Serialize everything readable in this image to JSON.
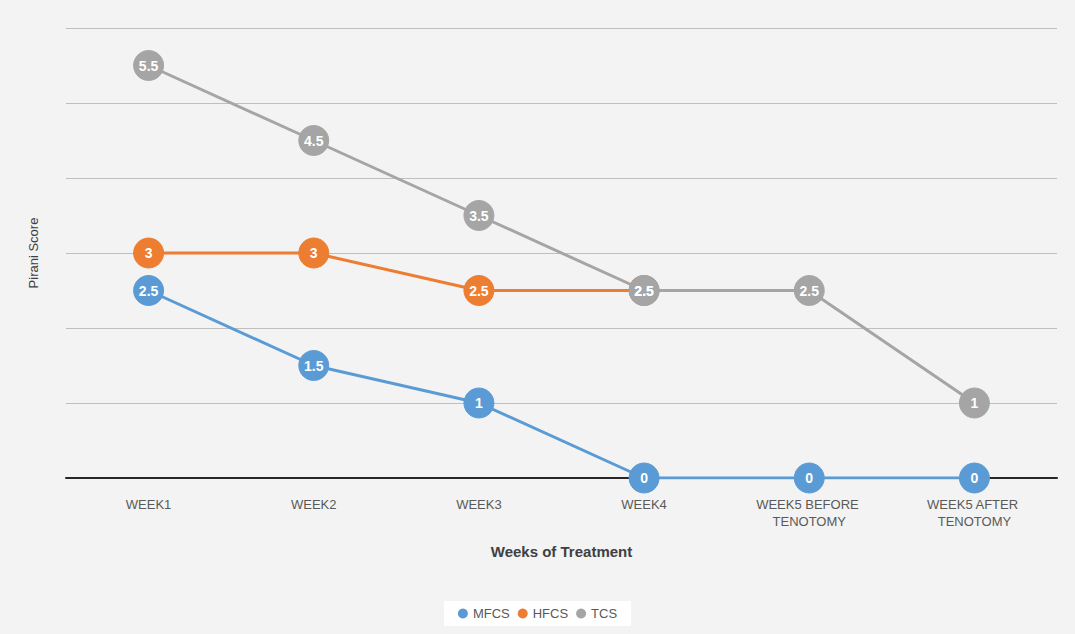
{
  "chart_data": {
    "type": "line",
    "x_label": "Weeks of Treatment",
    "y_label": "Pirani Score",
    "categories": [
      "WEEK1",
      "WEEK2",
      "WEEK3",
      "WEEK4",
      "WEEK5 BEFORE TENOTOMY",
      "WEEK5 AFTER TENOTOMY"
    ],
    "series": [
      {
        "name": "MFCS",
        "color": "#5b9bd5",
        "values": [
          2.5,
          1.5,
          1,
          0,
          0,
          0
        ]
      },
      {
        "name": "HFCS",
        "color": "#ed7d31",
        "values": [
          3,
          3,
          2.5,
          2.5,
          null,
          null
        ]
      },
      {
        "name": "TCS",
        "color": "#a5a5a5",
        "values": [
          5.5,
          4.5,
          3.5,
          2.5,
          2.5,
          1
        ]
      }
    ],
    "ylim": [
      0,
      6
    ],
    "yticks": [
      0,
      1,
      2,
      3,
      4,
      5,
      6
    ],
    "grid": true,
    "legend": "bottom",
    "data_labels": true,
    "marker": "circle",
    "tick_labels": "x"
  }
}
